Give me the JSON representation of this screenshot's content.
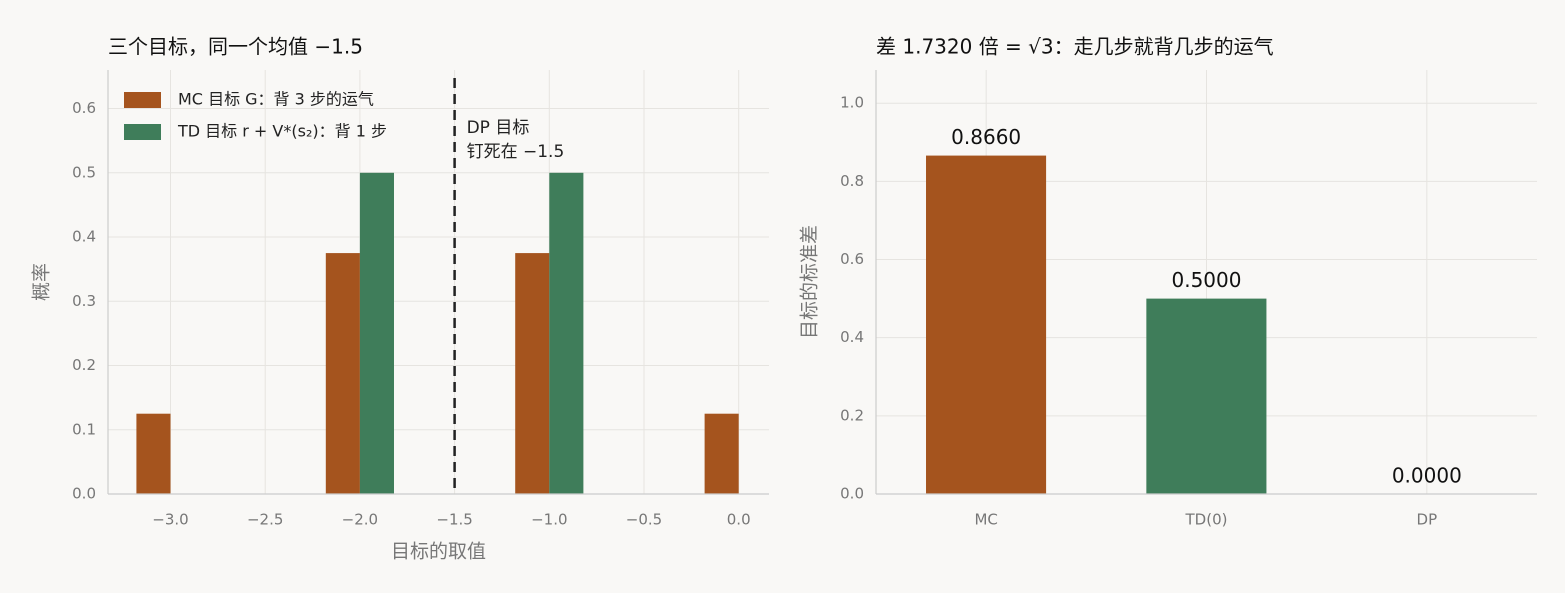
{
  "chart_data": [
    {
      "type": "bar",
      "title": "三个目标，同一个均值 −1.5",
      "xlabel": "目标的取值",
      "ylabel": "概率",
      "series": [
        {
          "name": "MC 目标 G：背 3 步的运气",
          "color": "#a5541e",
          "x": [
            -3,
            -2,
            -1,
            0
          ],
          "values": [
            0.125,
            0.375,
            0.375,
            0.125
          ]
        },
        {
          "name": "TD 目标 r + V*(s₂)：背 1 步",
          "color": "#3f7d5a",
          "x": [
            -2,
            -1
          ],
          "values": [
            0.5,
            0.5
          ]
        }
      ],
      "vline": -1.5,
      "annotation": [
        "DP 目标",
        "钉死在 −1.5"
      ],
      "xlim": [
        -3.33,
        0.16
      ],
      "ylim": [
        0,
        0.66
      ],
      "xticks": [
        {
          "value": -3,
          "label": "−3.0"
        },
        {
          "value": -2.5,
          "label": "−2.5"
        },
        {
          "value": -2,
          "label": "−2.0"
        },
        {
          "value": -1.5,
          "label": "−1.5"
        },
        {
          "value": -1,
          "label": "−1.0"
        },
        {
          "value": -0.5,
          "label": "−0.5"
        },
        {
          "value": 0,
          "label": "0.0"
        }
      ],
      "yticks": [
        {
          "value": 0,
          "label": "0.0"
        },
        0.1,
        0.2,
        0.3,
        0.4,
        0.5,
        0.6
      ],
      "grid": true,
      "legend": "upper left"
    },
    {
      "type": "bar",
      "title": "差 1.7320 倍 = √3：走几步就背几步的运气",
      "ylabel": "目标的标准差",
      "categories": [
        "MC",
        "TD(0)",
        "DP"
      ],
      "values": [
        0.866,
        0.5,
        0
      ],
      "value_labels": [
        "0.8660",
        "0.5000",
        "0.0000"
      ],
      "colors": [
        "#a5541e",
        "#3f7d5a",
        "#7f7f7f"
      ],
      "ylim": [
        0,
        1.085
      ],
      "yticks": [
        {
          "value": 0,
          "label": "0.0"
        },
        0.2,
        0.4,
        0.6,
        0.8,
        {
          "value": 1,
          "label": "1.0"
        }
      ],
      "grid": true
    }
  ]
}
